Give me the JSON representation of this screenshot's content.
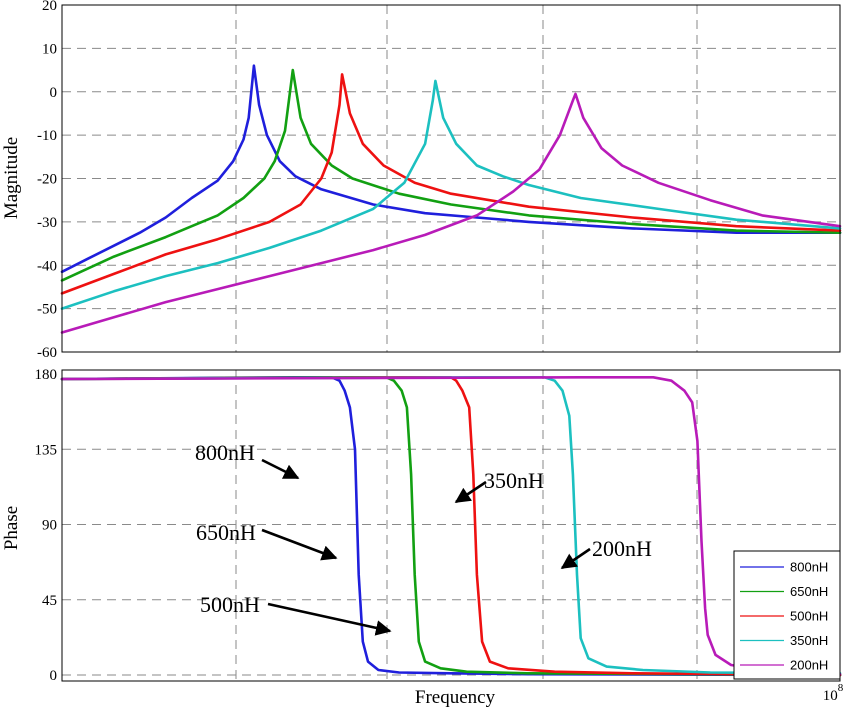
{
  "chart_data": [
    {
      "type": "line",
      "panel": "magnitude",
      "title": "",
      "xlabel": "",
      "ylabel": "Magnitude",
      "ylim": [
        -60,
        20
      ],
      "yticks": [
        "20",
        "10",
        "0",
        "-10",
        "-20",
        "-30",
        "-40",
        "-50",
        "-60"
      ],
      "ytick_values": [
        20,
        10,
        0,
        -10,
        -20,
        -30,
        -40,
        -50,
        -60
      ],
      "grid": true,
      "xscale": "log",
      "series": [
        {
          "name": "800nH",
          "color": "#1f1fdc",
          "resonance_decade": 3.7,
          "values": [
            [
              0,
              -41.5
            ],
            [
              0.5,
              -38.5
            ],
            [
              1.0,
              -35.5
            ],
            [
              1.5,
              -32.5
            ],
            [
              2.0,
              -29
            ],
            [
              2.5,
              -24.5
            ],
            [
              3.0,
              -20.5
            ],
            [
              3.3,
              -16
            ],
            [
              3.5,
              -11
            ],
            [
              3.6,
              -6
            ],
            [
              3.7,
              6
            ],
            [
              3.8,
              -3
            ],
            [
              3.95,
              -10
            ],
            [
              4.2,
              -16
            ],
            [
              4.5,
              -19.5
            ],
            [
              5.0,
              -22.5
            ],
            [
              6.0,
              -26
            ],
            [
              7.0,
              -28
            ],
            [
              8.0,
              -29
            ],
            [
              9.0,
              -30
            ],
            [
              11.0,
              -31.5
            ],
            [
              13.0,
              -32.5
            ],
            [
              15.0,
              -32.5
            ]
          ]
        },
        {
          "name": "650nH",
          "color": "#12a012",
          "resonance_decade": 4.45,
          "values": [
            [
              0,
              -43.5
            ],
            [
              1.0,
              -38
            ],
            [
              2.0,
              -33.5
            ],
            [
              2.5,
              -31
            ],
            [
              3.0,
              -28.5
            ],
            [
              3.5,
              -24.5
            ],
            [
              3.9,
              -20
            ],
            [
              4.1,
              -16
            ],
            [
              4.3,
              -9
            ],
            [
              4.45,
              5
            ],
            [
              4.6,
              -6
            ],
            [
              4.8,
              -12
            ],
            [
              5.2,
              -17
            ],
            [
              5.6,
              -20
            ],
            [
              6.5,
              -23.5
            ],
            [
              7.5,
              -26
            ],
            [
              9.0,
              -28.5
            ],
            [
              11.0,
              -30.5
            ],
            [
              13.0,
              -32
            ],
            [
              15.0,
              -32.5
            ]
          ]
        },
        {
          "name": "500nH",
          "color": "#ee1111",
          "resonance_decade": 5.4,
          "values": [
            [
              0,
              -46.5
            ],
            [
              1.0,
              -42
            ],
            [
              2.0,
              -37.5
            ],
            [
              3.0,
              -34
            ],
            [
              4.0,
              -30
            ],
            [
              4.6,
              -26
            ],
            [
              5.0,
              -20
            ],
            [
              5.2,
              -14
            ],
            [
              5.35,
              -3
            ],
            [
              5.4,
              4
            ],
            [
              5.55,
              -5
            ],
            [
              5.8,
              -12
            ],
            [
              6.2,
              -17
            ],
            [
              6.8,
              -21
            ],
            [
              7.5,
              -23.5
            ],
            [
              9.0,
              -26.5
            ],
            [
              11.0,
              -29
            ],
            [
              13.0,
              -31
            ],
            [
              15.0,
              -32
            ]
          ]
        },
        {
          "name": "350nH",
          "color": "#1cc0c0",
          "resonance_decade": 7.2,
          "values": [
            [
              0,
              -50
            ],
            [
              1.0,
              -46
            ],
            [
              2.0,
              -42.5
            ],
            [
              3.0,
              -39.5
            ],
            [
              4.0,
              -36
            ],
            [
              5.0,
              -32
            ],
            [
              6.0,
              -27
            ],
            [
              6.6,
              -21
            ],
            [
              7.0,
              -12
            ],
            [
              7.15,
              -2
            ],
            [
              7.2,
              2.5
            ],
            [
              7.35,
              -6
            ],
            [
              7.6,
              -12
            ],
            [
              8.0,
              -17
            ],
            [
              8.5,
              -19.5
            ],
            [
              9.0,
              -21.5
            ],
            [
              10.0,
              -24.5
            ],
            [
              11.5,
              -27
            ],
            [
              13.0,
              -29.5
            ],
            [
              15.0,
              -31.5
            ]
          ]
        },
        {
          "name": "200nH",
          "color": "#b81bb8",
          "resonance_decade": 9.9,
          "values": [
            [
              0,
              -55.5
            ],
            [
              1.0,
              -52
            ],
            [
              2.0,
              -48.5
            ],
            [
              3.0,
              -45.5
            ],
            [
              4.0,
              -42.5
            ],
            [
              5.0,
              -39.5
            ],
            [
              6.0,
              -36.5
            ],
            [
              7.0,
              -33
            ],
            [
              8.0,
              -28.5
            ],
            [
              8.7,
              -23
            ],
            [
              9.2,
              -18
            ],
            [
              9.6,
              -10
            ],
            [
              9.85,
              -2
            ],
            [
              9.9,
              -0.5
            ],
            [
              10.05,
              -6
            ],
            [
              10.4,
              -13
            ],
            [
              10.8,
              -17
            ],
            [
              11.5,
              -21
            ],
            [
              12.5,
              -25
            ],
            [
              13.5,
              -28.5
            ],
            [
              15.0,
              -31
            ]
          ]
        }
      ]
    },
    {
      "type": "line",
      "panel": "phase",
      "title": "",
      "xlabel": "Frequency",
      "ylabel": "Phase",
      "ylim": [
        -3,
        180
      ],
      "yticks": [
        "180",
        "135",
        "90",
        "45",
        "0"
      ],
      "ytick_values": [
        180,
        135,
        90,
        45,
        0
      ],
      "xtick_last": "10",
      "xtick_last_exponent": "8",
      "grid": true,
      "xscale": "log",
      "legend_position": "bottom-right",
      "series": [
        {
          "name": "800nH",
          "color": "#1f1fdc",
          "values": [
            [
              0,
              177
            ],
            [
              4.5,
              178
            ],
            [
              5.2,
              178
            ],
            [
              5.35,
              176
            ],
            [
              5.45,
              170
            ],
            [
              5.55,
              160
            ],
            [
              5.65,
              135
            ],
            [
              5.72,
              60
            ],
            [
              5.8,
              20
            ],
            [
              5.9,
              8
            ],
            [
              6.1,
              3
            ],
            [
              6.5,
              1.5
            ],
            [
              7.5,
              1
            ],
            [
              9,
              0.5
            ],
            [
              15,
              0
            ]
          ]
        },
        {
          "name": "650nH",
          "color": "#12a012",
          "values": [
            [
              0,
              177
            ],
            [
              5.5,
              178
            ],
            [
              6.25,
              178
            ],
            [
              6.4,
              176
            ],
            [
              6.55,
              170
            ],
            [
              6.65,
              160
            ],
            [
              6.73,
              120
            ],
            [
              6.8,
              60
            ],
            [
              6.88,
              20
            ],
            [
              7.0,
              8
            ],
            [
              7.3,
              4
            ],
            [
              7.8,
              2
            ],
            [
              9,
              1
            ],
            [
              15,
              0
            ]
          ]
        },
        {
          "name": "500nH",
          "color": "#ee1111",
          "values": [
            [
              0,
              177
            ],
            [
              6.5,
              178
            ],
            [
              7.5,
              178
            ],
            [
              7.6,
              176
            ],
            [
              7.72,
              170
            ],
            [
              7.85,
              160
            ],
            [
              7.93,
              120
            ],
            [
              8.0,
              60
            ],
            [
              8.1,
              20
            ],
            [
              8.25,
              8
            ],
            [
              8.6,
              4
            ],
            [
              9.5,
              2
            ],
            [
              11,
              1
            ],
            [
              15,
              0
            ]
          ]
        },
        {
          "name": "350nH",
          "color": "#1cc0c0",
          "values": [
            [
              0,
              177
            ],
            [
              8,
              178
            ],
            [
              9.3,
              178
            ],
            [
              9.5,
              176
            ],
            [
              9.65,
              170
            ],
            [
              9.78,
              155
            ],
            [
              9.85,
              120
            ],
            [
              9.93,
              60
            ],
            [
              10.0,
              22
            ],
            [
              10.15,
              10
            ],
            [
              10.5,
              5
            ],
            [
              11.2,
              3
            ],
            [
              12.5,
              1.5
            ],
            [
              15,
              1
            ]
          ]
        },
        {
          "name": "200nH",
          "color": "#b81bb8",
          "values": [
            [
              0,
              177
            ],
            [
              10,
              178
            ],
            [
              11.4,
              178
            ],
            [
              11.75,
              176
            ],
            [
              12.0,
              170
            ],
            [
              12.15,
              163
            ],
            [
              12.25,
              140
            ],
            [
              12.33,
              80
            ],
            [
              12.4,
              40
            ],
            [
              12.45,
              24
            ],
            [
              12.6,
              12
            ],
            [
              12.9,
              6
            ],
            [
              13.5,
              3
            ],
            [
              14.3,
              1
            ],
            [
              15,
              0.5
            ]
          ]
        }
      ],
      "annotations": [
        {
          "text": "800nH",
          "target": "800nH"
        },
        {
          "text": "650nH",
          "target": "650nH"
        },
        {
          "text": "500nH",
          "target": "500nH"
        },
        {
          "text": "350nH",
          "target": "350nH"
        },
        {
          "text": "200nH",
          "target": "200nH"
        }
      ]
    }
  ]
}
